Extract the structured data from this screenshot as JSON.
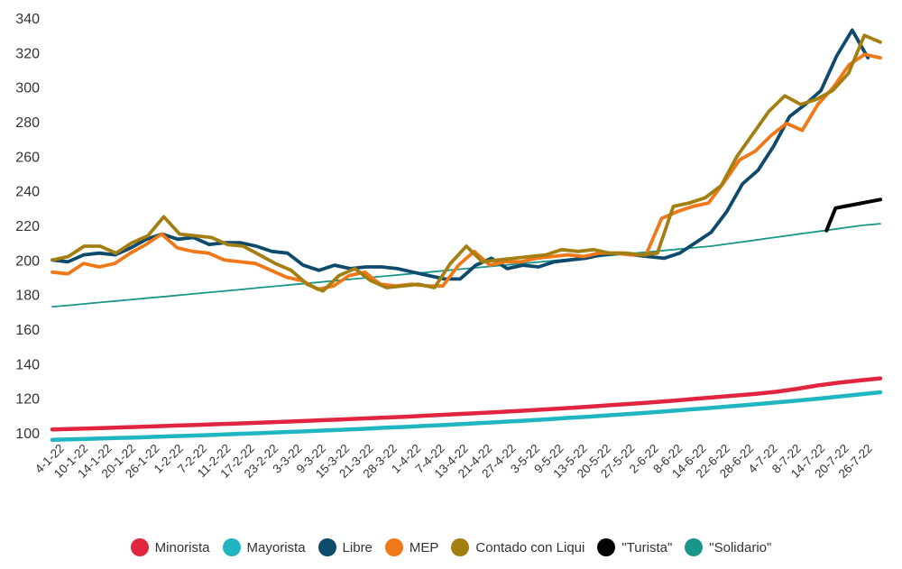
{
  "chart_data": {
    "type": "line",
    "title": "",
    "xlabel": "",
    "ylabel": "",
    "ylim": [
      90,
      345
    ],
    "yticks": [
      100,
      120,
      140,
      160,
      180,
      200,
      220,
      240,
      260,
      280,
      300,
      320,
      340
    ],
    "grid": false,
    "legend_position": "bottom",
    "x_tick_labels": [
      "4-1-22",
      "10-1-22",
      "14-1-22",
      "20-1-22",
      "26-1-22",
      "1-2-22",
      "7-2-22",
      "11-2-22",
      "17-2-22",
      "23-2-22",
      "3-3-22",
      "9-3-22",
      "15-3-22",
      "21-3-22",
      "28-3-22",
      "1-4-22",
      "7-4-22",
      "13-4-22",
      "21-4-22",
      "27-4-22",
      "3-5-22",
      "9-5-22",
      "13-5-22",
      "20-5-22",
      "27-5-22",
      "2-6-22",
      "8-6-22",
      "14-6-22",
      "22-6-22",
      "28-6-22",
      "4-7-22",
      "8-7-22",
      "14-7-22",
      "20-7-22",
      "26-7-22"
    ],
    "series": [
      {
        "name": "Minorista",
        "color": "#e0253f",
        "values": [
          102,
          102.3,
          102.6,
          103,
          103.4,
          103.8,
          104.2,
          104.6,
          105,
          105.4,
          105.9,
          106.3,
          106.8,
          107.3,
          107.8,
          108.3,
          108.8,
          109.3,
          109.9,
          110.5,
          111.1,
          111.7,
          112.3,
          113,
          113.7,
          114.4,
          115.2,
          116,
          116.8,
          117.7,
          118.6,
          119.6,
          120.6,
          121.6,
          122.6,
          123.8,
          125.5,
          127.5,
          129,
          130.3,
          131.5
        ]
      },
      {
        "name": "Mayorista",
        "color": "#1fb5c1",
        "values": [
          96,
          96.3,
          96.6,
          97,
          97.3,
          97.7,
          98.1,
          98.5,
          98.9,
          99.4,
          99.8,
          100.3,
          100.8,
          101.3,
          101.8,
          102.3,
          102.9,
          103.4,
          104,
          104.6,
          105.2,
          105.9,
          106.5,
          107.2,
          107.9,
          108.7,
          109.4,
          110.2,
          111,
          111.9,
          112.8,
          113.7,
          114.6,
          115.6,
          116.6,
          117.6,
          118.7,
          119.8,
          121,
          122.2,
          123.5
        ]
      },
      {
        "name": "Libre",
        "color": "#0d4a6b",
        "values": [
          200,
          199,
          203,
          204,
          203,
          207,
          212,
          215,
          212,
          213,
          209,
          210,
          210,
          208,
          205,
          204,
          197,
          194,
          197,
          195,
          196,
          196,
          195,
          193,
          191,
          189,
          189,
          197,
          201,
          195,
          197,
          196,
          199,
          200,
          201,
          203,
          204,
          203,
          202,
          201,
          204,
          210,
          216,
          228,
          244,
          252,
          266,
          283,
          290,
          298,
          318,
          333,
          317
        ]
      },
      {
        "name": "MEP",
        "color": "#f07818",
        "values": [
          193,
          192,
          198,
          196,
          198,
          204,
          209,
          215,
          207,
          205,
          204,
          200,
          199,
          198,
          194,
          190,
          188,
          183,
          185,
          191,
          193,
          186,
          185,
          186,
          185,
          185,
          197,
          205,
          197,
          199,
          199,
          201,
          202,
          203,
          202,
          204,
          204,
          203,
          203,
          224,
          228,
          231,
          233,
          245,
          258,
          263,
          272,
          279,
          275,
          290,
          300,
          313,
          319,
          317
        ]
      },
      {
        "name": "Contado con Liqui",
        "color": "#a37f12",
        "values": [
          200,
          202,
          208,
          208,
          204,
          210,
          214,
          225,
          215,
          214,
          213,
          209,
          208,
          203,
          198,
          194,
          186,
          182,
          191,
          195,
          188,
          184,
          185,
          186,
          184,
          198,
          208,
          199,
          200,
          201,
          202,
          203,
          206,
          205,
          206,
          204,
          204,
          203,
          204,
          231,
          233,
          236,
          243,
          260,
          273,
          286,
          295,
          290,
          293,
          298,
          308,
          330,
          326
        ]
      },
      {
        "name": "\"Turista\"",
        "color": "#000000",
        "values": [
          217,
          230,
          231,
          232,
          233,
          234,
          235
        ]
      },
      {
        "name": "\"Solidario\"",
        "color": "#19958a",
        "values": [
          173,
          173.9,
          174.9,
          175.9,
          176.9,
          177.9,
          178.9,
          179.9,
          180.9,
          181.9,
          182.9,
          184,
          185,
          186,
          187,
          188,
          189,
          190,
          191,
          192,
          193,
          194,
          195,
          196,
          197,
          198,
          199,
          200,
          201,
          202,
          203,
          204,
          205,
          206,
          207,
          208,
          209.5,
          211,
          212.5,
          214,
          215.5,
          217,
          218.5,
          220,
          221
        ]
      }
    ]
  }
}
